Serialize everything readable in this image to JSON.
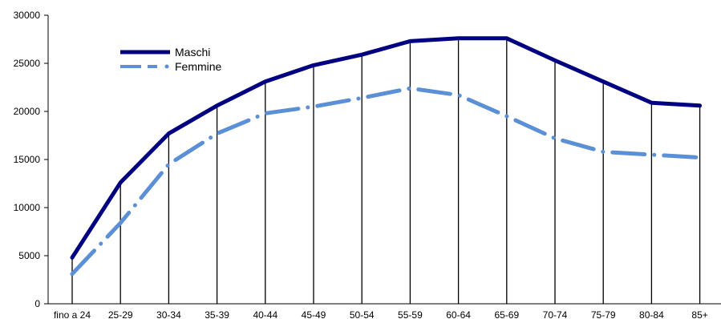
{
  "chart_data": {
    "type": "line",
    "categories": [
      "fino a 24",
      "25-29",
      "30-34",
      "35-39",
      "40-44",
      "45-49",
      "50-54",
      "55-59",
      "60-64",
      "65-69",
      "70-74",
      "75-79",
      "80-84",
      "85+"
    ],
    "series": [
      {
        "name": "Maschi",
        "color": "#000080",
        "line_style": "solid",
        "values": [
          4800,
          12600,
          17700,
          20600,
          23100,
          24800,
          25900,
          27300,
          27600,
          27600,
          25300,
          23100,
          20900,
          20600
        ]
      },
      {
        "name": "Femmine",
        "color": "#5b8fd6",
        "line_style": "dash-dot",
        "values": [
          3100,
          8400,
          14500,
          17700,
          19800,
          20500,
          21400,
          22400,
          21700,
          19500,
          17200,
          15800,
          15500,
          15200
        ]
      }
    ],
    "y_ticks": [
      0,
      5000,
      10000,
      15000,
      20000,
      25000,
      30000
    ],
    "ylim": [
      0,
      30000
    ],
    "drop_lines": true,
    "grid": false,
    "legend_position": "top-left"
  }
}
